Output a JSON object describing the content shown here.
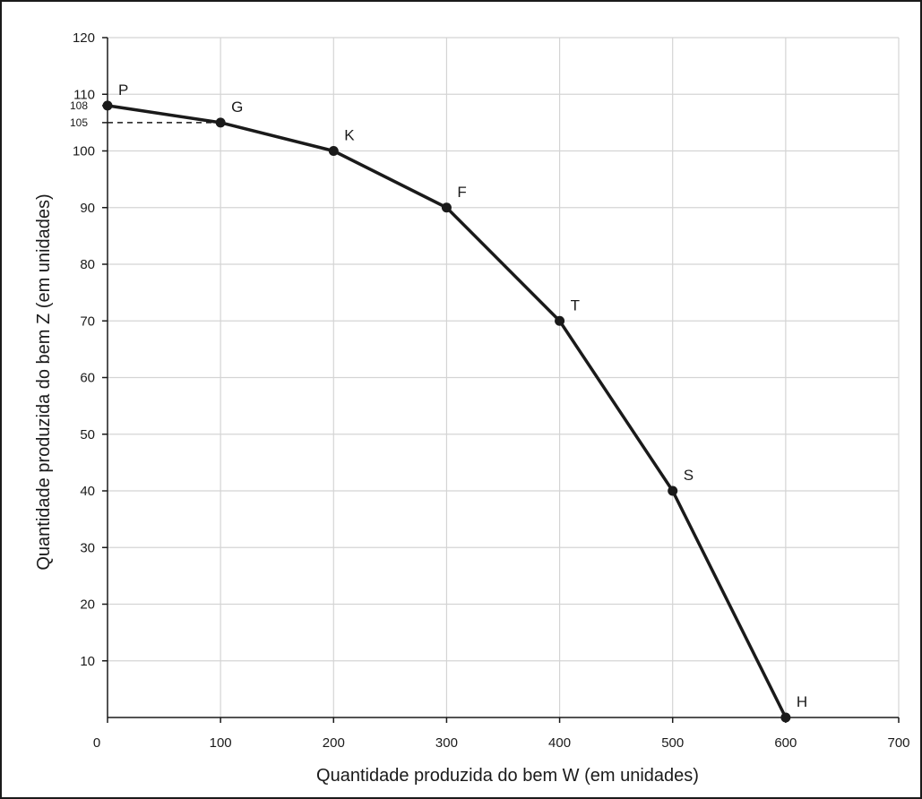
{
  "chart_data": {
    "type": "line",
    "title": "",
    "xlabel": "Quantidade produzida do bem W (em unidades)",
    "ylabel": "Quantidade produzida do bem Z (em unidades)",
    "xlim": [
      0,
      700
    ],
    "ylim": [
      0,
      120
    ],
    "x_ticks": [
      0,
      100,
      200,
      300,
      400,
      500,
      600,
      700
    ],
    "y_ticks": [
      10,
      20,
      30,
      40,
      50,
      60,
      70,
      80,
      90,
      100,
      110,
      120
    ],
    "extra_y_ticks": [
      105,
      108
    ],
    "grid": true,
    "colors": {
      "line": "#1a1a1a",
      "grid": "#d4d4d4",
      "axis": "#1a1a1a"
    },
    "series": [
      {
        "points": [
          {
            "label": "P",
            "x": 0,
            "y": 108
          },
          {
            "label": "G",
            "x": 100,
            "y": 105
          },
          {
            "label": "K",
            "x": 200,
            "y": 100
          },
          {
            "label": "F",
            "x": 300,
            "y": 90
          },
          {
            "label": "T",
            "x": 400,
            "y": 70
          },
          {
            "label": "S",
            "x": 500,
            "y": 40
          },
          {
            "label": "H",
            "x": 600,
            "y": 0
          }
        ]
      }
    ],
    "reference_lines": [
      {
        "type": "dashed-horizontal",
        "y": 105,
        "x_from": 0,
        "x_to": 100
      }
    ]
  }
}
